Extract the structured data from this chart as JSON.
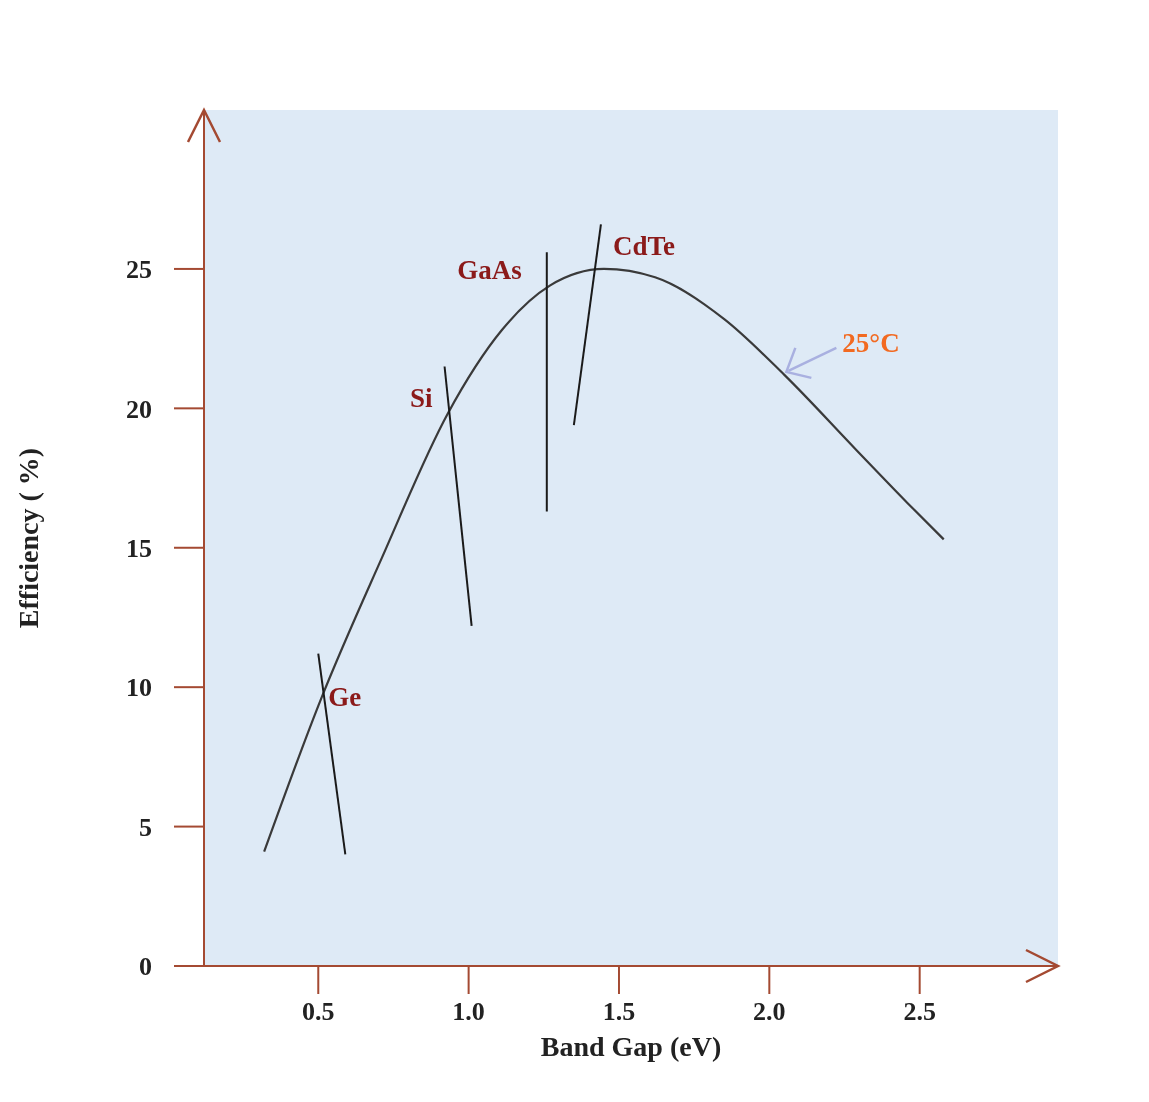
{
  "chart_data": {
    "type": "line",
    "xlabel": "Band Gap (eV)",
    "ylabel": "Efficiency ( %)",
    "xlim": [
      0.12,
      2.96
    ],
    "ylim": [
      0,
      30.7
    ],
    "xticks": [
      0.5,
      {
        "value": 1,
        "label": "1.0"
      },
      1.5,
      {
        "value": 2,
        "label": "2.0"
      },
      2.5
    ],
    "yticks": [
      0,
      5,
      10,
      15,
      20,
      25
    ],
    "grid": false,
    "legend": false,
    "marker": "none",
    "line_style": "solid",
    "series": [
      {
        "color": "#3a3a3a",
        "x": [
          0.32,
          0.51,
          0.71,
          0.93,
          1.11,
          1.27,
          1.45,
          1.62,
          1.85,
          2.05,
          2.29,
          2.46,
          2.58
        ],
        "values": [
          4.1,
          9.6,
          14.6,
          19.8,
          22.8,
          24.4,
          25.0,
          24.7,
          23.2,
          21.2,
          18.5,
          16.6,
          15.3
        ]
      },
      {
        "name": "Ge",
        "color": "#1a1a1a",
        "x": [
          0.5,
          0.59
        ],
        "values": [
          11.2,
          4.0
        ]
      },
      {
        "name": "Si",
        "color": "#1a1a1a",
        "x": [
          0.92,
          1.01
        ],
        "values": [
          21.5,
          12.2
        ]
      },
      {
        "name": "GaAs",
        "color": "#1a1a1a",
        "x": [
          1.26,
          1.26
        ],
        "values": [
          25.6,
          16.3
        ]
      },
      {
        "name": "CdTe",
        "color": "#1a1a1a",
        "x": [
          1.44,
          1.35
        ],
        "values": [
          26.6,
          19.4
        ]
      }
    ],
    "annotations": [
      {
        "text": "25°C",
        "x": 2.05,
        "y": 21.2
      }
    ]
  }
}
